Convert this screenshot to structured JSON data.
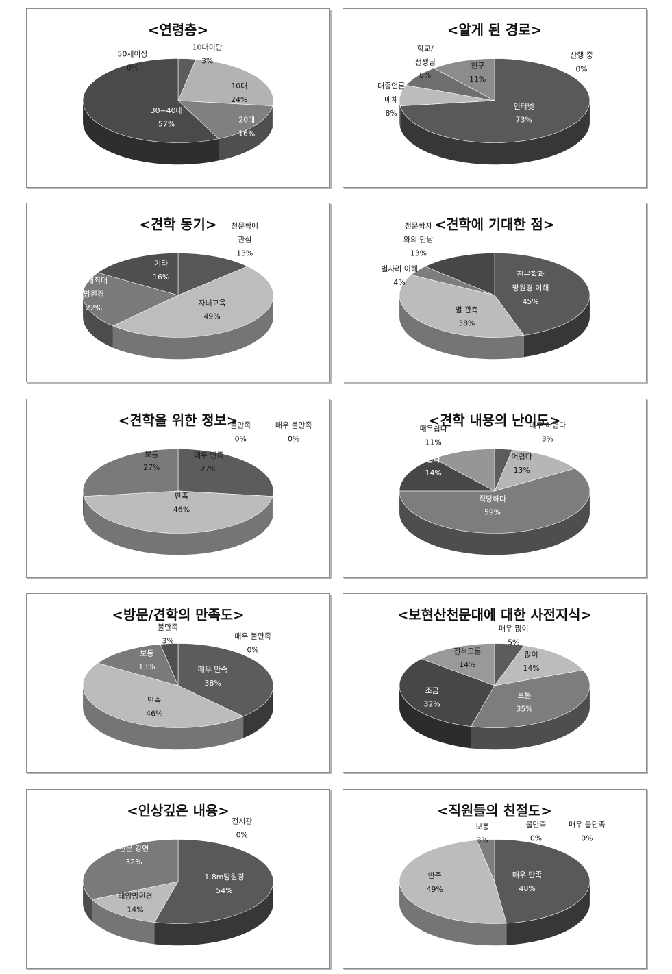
{
  "charts": [
    {
      "type": "pie",
      "title": "<연령층>",
      "categories": [
        "10대미만",
        "10대",
        "20대",
        "30~40대",
        "50세이상"
      ],
      "labels": [
        [
          "10대미만"
        ],
        [
          "10대"
        ],
        [
          "20대"
        ],
        [
          "30~40대"
        ],
        [
          "50세이상"
        ]
      ],
      "pct_labels": [
        "3%",
        "24%",
        "16%",
        "57%",
        "0%"
      ],
      "values": [
        3,
        24,
        16,
        57,
        0
      ],
      "colors": [
        "#5c5c5c",
        "#b3b3b3",
        "#808080",
        "#4a4a4a",
        "#6a6a6a"
      ]
    },
    {
      "type": "pie",
      "title": "<알게 된 경로>",
      "categories": [
        "인터넷",
        "대중언론 매체",
        "학교/ 선생님",
        "친구",
        "산행 중"
      ],
      "labels": [
        [
          "인터넷"
        ],
        [
          "대중언론",
          "매체"
        ],
        [
          "학교/",
          "선생님"
        ],
        [
          "친구"
        ],
        [
          "산행 중"
        ]
      ],
      "pct_labels": [
        "73%",
        "8%",
        "8%",
        "11%",
        "0%"
      ],
      "values": [
        73,
        8,
        8,
        11,
        0
      ],
      "colors": [
        "#595959",
        "#bcbcbc",
        "#6e6e6e",
        "#8c8c8c",
        "#777777"
      ]
    },
    {
      "type": "pie",
      "title": "<견학 동기>",
      "categories": [
        "천문학에 관심",
        "자녀교육",
        "국내최대 망원경",
        "기타"
      ],
      "labels": [
        [
          "천문학에",
          "관심"
        ],
        [
          "자녀교육"
        ],
        [
          "국내최대",
          "망원경"
        ],
        [
          "기타"
        ]
      ],
      "pct_labels": [
        "13%",
        "49%",
        "22%",
        "16%"
      ],
      "values": [
        13,
        49,
        22,
        16
      ],
      "colors": [
        "#575757",
        "#bdbdbd",
        "#7a7a7a",
        "#4f4f4f"
      ]
    },
    {
      "type": "pie",
      "title": "<견학에 기대한 점>",
      "categories": [
        "천문학과 망원경 이해",
        "별 관측",
        "별자리 이해",
        "천문학자 와의 만남"
      ],
      "labels": [
        [
          "천문학과",
          "망원경 이해"
        ],
        [
          "별 관측"
        ],
        [
          "별자리 이해"
        ],
        [
          "천문학자",
          "와의 만남"
        ]
      ],
      "pct_labels": [
        "45%",
        "38%",
        "4%",
        "13%"
      ],
      "values": [
        45,
        38,
        4,
        13
      ],
      "colors": [
        "#595959",
        "#bcbcbc",
        "#7d7d7d",
        "#474747"
      ]
    },
    {
      "type": "pie",
      "title": "<견학을 위한 정보>",
      "categories": [
        "매우 만족",
        "만족",
        "보통",
        "불만족",
        "매우 불만족"
      ],
      "labels": [
        [
          "매우 만족"
        ],
        [
          "만족"
        ],
        [
          "보통"
        ],
        [
          "불만족"
        ],
        [
          "매우 불만족"
        ]
      ],
      "pct_labels": [
        "27%",
        "46%",
        "27%",
        "0%",
        "0%"
      ],
      "values": [
        27,
        46,
        27,
        0,
        0
      ],
      "colors": [
        "#5c5c5c",
        "#bcbcbc",
        "#7a7a7a",
        "#8c8c8c",
        "#6a6a6a"
      ]
    },
    {
      "type": "pie",
      "title": "<견학 내용의 난이도>",
      "categories": [
        "매우 어렵다",
        "어렵다",
        "적당하다",
        "쉽다",
        "매우쉽다"
      ],
      "labels": [
        [
          "매우 어렵다"
        ],
        [
          "어렵다"
        ],
        [
          "적당하다"
        ],
        [
          "쉽다"
        ],
        [
          "매우쉽다"
        ]
      ],
      "pct_labels": [
        "3%",
        "13%",
        "59%",
        "14%",
        "11%"
      ],
      "values": [
        3,
        13,
        59,
        14,
        11
      ],
      "colors": [
        "#5c5c5c",
        "#b6b6b6",
        "#7d7d7d",
        "#474747",
        "#969696"
      ]
    },
    {
      "type": "pie",
      "title": "<방문/견학의 만족도>",
      "categories": [
        "매우 만족",
        "만족",
        "보통",
        "불만족",
        "매우 불만족"
      ],
      "labels": [
        [
          "매우 만족"
        ],
        [
          "만족"
        ],
        [
          "보통"
        ],
        [
          "불만족"
        ],
        [
          "매우 불만족"
        ]
      ],
      "pct_labels": [
        "38%",
        "46%",
        "13%",
        "3%",
        "0%"
      ],
      "values": [
        38,
        46,
        13,
        3,
        0
      ],
      "colors": [
        "#5c5c5c",
        "#bcbcbc",
        "#7a7a7a",
        "#4f4f4f",
        "#6a6a6a"
      ]
    },
    {
      "type": "pie",
      "title": "<보현산천문대에 대한 사전지식>",
      "categories": [
        "매우 많이",
        "많이",
        "보통",
        "조금",
        "전혀모름"
      ],
      "labels": [
        [
          "매우 많이"
        ],
        [
          "많이"
        ],
        [
          "보통"
        ],
        [
          "조금"
        ],
        [
          "전혀모름"
        ]
      ],
      "pct_labels": [
        "5%",
        "14%",
        "35%",
        "32%",
        "14%"
      ],
      "values": [
        5,
        14,
        35,
        32,
        14
      ],
      "colors": [
        "#5c5c5c",
        "#bcbcbc",
        "#7d7d7d",
        "#474747",
        "#999999"
      ]
    },
    {
      "type": "pie",
      "title": "<인상깊은 내용>",
      "categories": [
        "전시관",
        "1.8m망원경",
        "태양망원경",
        "천문 강연"
      ],
      "labels": [
        [
          "전시관"
        ],
        [
          "1.8m망원경"
        ],
        [
          "태양망원경"
        ],
        [
          "천문 강연"
        ]
      ],
      "pct_labels": [
        "0%",
        "54%",
        "14%",
        "32%"
      ],
      "values": [
        0,
        54,
        14,
        32
      ],
      "colors": [
        "#6a6a6a",
        "#595959",
        "#bcbcbc",
        "#7a7a7a"
      ]
    },
    {
      "type": "pie",
      "title": "<직원들의 친절도>",
      "categories": [
        "매우 만족",
        "만족",
        "보통",
        "불만족",
        "매우 불만족"
      ],
      "labels": [
        [
          "매우 만족"
        ],
        [
          "만족"
        ],
        [
          "보통"
        ],
        [
          "불만족"
        ],
        [
          "매우 불만족"
        ]
      ],
      "pct_labels": [
        "48%",
        "49%",
        "3%",
        "0%",
        "0%"
      ],
      "values": [
        48,
        49,
        3,
        0,
        0
      ],
      "colors": [
        "#595959",
        "#bcbcbc",
        "#7d7d7d",
        "#8c8c8c",
        "#6a6a6a"
      ]
    }
  ]
}
